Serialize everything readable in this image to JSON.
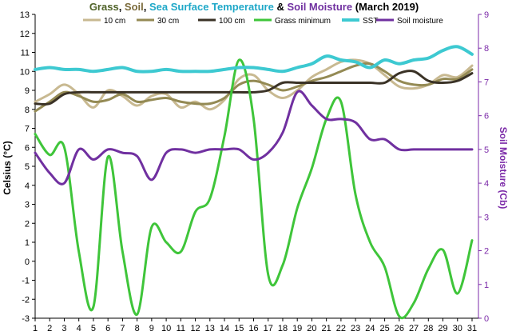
{
  "title_parts": [
    {
      "text": "Grass",
      "color": "#4f6228"
    },
    {
      "text": ", ",
      "color": "#000000"
    },
    {
      "text": "Soil",
      "color": "#7a6a3a"
    },
    {
      "text": ", ",
      "color": "#000000"
    },
    {
      "text": "Sea Surface Temperature",
      "color": "#1fa8c8"
    },
    {
      "text": " & ",
      "color": "#000000"
    },
    {
      "text": "Soil Moisture",
      "color": "#7030a0"
    },
    {
      "text": " (March 2019)",
      "color": "#000000"
    }
  ],
  "chart_data": {
    "type": "line",
    "title": "Grass, Soil, Sea Surface Temperature & Soil Moisture (March 2019)",
    "ylabel": "Celsius (°C)",
    "ylabel_right": "Soil Moisture (Cb)",
    "ylim": [
      -3,
      13
    ],
    "ylim_right": [
      0,
      9
    ],
    "x": [
      1,
      2,
      3,
      4,
      5,
      6,
      7,
      8,
      9,
      10,
      11,
      12,
      13,
      14,
      15,
      16,
      17,
      18,
      19,
      20,
      21,
      22,
      23,
      24,
      25,
      26,
      27,
      28,
      29,
      30,
      31
    ],
    "x_ticks": [
      "1",
      "2",
      "3",
      "4",
      "5",
      "6",
      "7",
      "8",
      "9",
      "10",
      "11",
      "12",
      "13",
      "14",
      "15",
      "16",
      "17",
      "18",
      "19",
      "20",
      "21",
      "22",
      "23",
      "24",
      "25",
      "26",
      "27",
      "28",
      "29",
      "30",
      "31"
    ],
    "y_ticks": [
      "-3",
      "-2",
      "-1",
      "0",
      "1",
      "2",
      "3",
      "4",
      "5",
      "6",
      "7",
      "8",
      "9",
      "10",
      "11",
      "12",
      "13"
    ],
    "y_ticks_right": [
      "0",
      "1",
      "2",
      "3",
      "4",
      "5",
      "6",
      "7",
      "8",
      "9"
    ],
    "grid": false,
    "legend_position": "top",
    "series": [
      {
        "name": "10 cm",
        "axis": "left",
        "color": "#c8b991",
        "width": 3,
        "values": [
          8.4,
          8.8,
          9.3,
          8.8,
          8.1,
          9.0,
          8.7,
          8.2,
          8.7,
          8.8,
          8.1,
          8.4,
          8.0,
          8.5,
          9.6,
          9.8,
          9.0,
          8.6,
          9.0,
          9.7,
          10.1,
          10.5,
          10.6,
          10.4,
          9.8,
          9.2,
          9.1,
          9.3,
          9.8,
          9.7,
          10.3
        ]
      },
      {
        "name": "30 cm",
        "axis": "left",
        "color": "#948a54",
        "width": 3,
        "values": [
          7.9,
          8.4,
          8.9,
          8.7,
          8.4,
          8.5,
          8.8,
          8.4,
          8.5,
          8.6,
          8.4,
          8.3,
          8.3,
          8.6,
          9.3,
          9.5,
          9.3,
          9.0,
          9.2,
          9.5,
          9.7,
          10.0,
          10.3,
          10.4,
          10.0,
          9.5,
          9.3,
          9.3,
          9.6,
          9.6,
          10.1
        ]
      },
      {
        "name": "100 cm",
        "axis": "left",
        "color": "#3a3226",
        "width": 3,
        "values": [
          8.3,
          8.3,
          8.8,
          8.9,
          8.9,
          8.9,
          8.9,
          8.9,
          8.9,
          8.9,
          8.9,
          8.9,
          8.9,
          8.9,
          8.9,
          8.9,
          9.0,
          9.4,
          9.4,
          9.4,
          9.4,
          9.4,
          9.4,
          9.4,
          9.4,
          9.9,
          10.0,
          9.5,
          9.4,
          9.5,
          9.9
        ]
      },
      {
        "name": "Grass minimum",
        "axis": "left",
        "color": "#3fc53a",
        "width": 3,
        "values": [
          6.7,
          5.6,
          6.0,
          0.5,
          -2.4,
          5.5,
          0.5,
          -2.8,
          1.8,
          1.0,
          0.5,
          2.6,
          3.3,
          6.6,
          10.6,
          7.5,
          -0.7,
          -0.2,
          2.8,
          4.9,
          7.5,
          8.4,
          3.5,
          1.0,
          -0.3,
          -2.9,
          -2.2,
          -0.4,
          0.6,
          -1.7,
          1.1
        ]
      },
      {
        "name": "SST",
        "axis": "left",
        "color": "#3dc9d1",
        "width": 4,
        "values": [
          10.1,
          10.2,
          10.1,
          10.1,
          10.0,
          10.1,
          10.2,
          10.0,
          10.0,
          10.1,
          10.0,
          10.0,
          10.0,
          10.1,
          10.2,
          10.2,
          10.1,
          10.0,
          10.2,
          10.4,
          10.8,
          10.6,
          10.5,
          10.2,
          10.6,
          10.4,
          10.6,
          10.7,
          11.1,
          11.3,
          10.9
        ]
      },
      {
        "name": "Soil moisture",
        "axis": "right",
        "color": "#7030a0",
        "width": 3,
        "values": [
          4.9,
          4.3,
          4.0,
          5.0,
          4.7,
          5.0,
          4.9,
          4.8,
          4.1,
          4.9,
          5.0,
          4.9,
          5.0,
          5.0,
          5.0,
          4.7,
          4.9,
          5.5,
          6.7,
          6.3,
          5.9,
          5.9,
          5.8,
          5.3,
          5.3,
          5.0,
          5.0,
          5.0,
          5.0,
          5.0,
          5.0
        ]
      }
    ]
  }
}
